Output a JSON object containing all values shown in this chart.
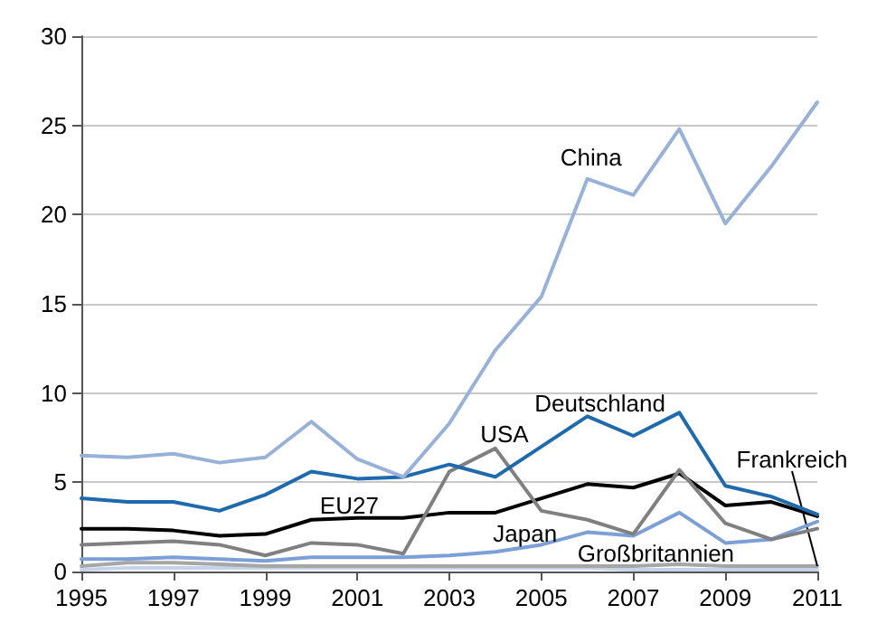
{
  "chart_data": {
    "type": "line",
    "x": [
      1995,
      1996,
      1997,
      1998,
      1999,
      2000,
      2001,
      2002,
      2003,
      2004,
      2005,
      2006,
      2007,
      2008,
      2009,
      2010,
      2011
    ],
    "series": [
      {
        "name": "China",
        "color": "#98b1d9",
        "values": [
          6.5,
          6.4,
          6.6,
          6.1,
          6.4,
          8.4,
          6.3,
          5.3,
          8.3,
          12.4,
          15.4,
          22,
          21.1,
          24.8,
          19.5,
          22.7,
          26.3
        ]
      },
      {
        "name": "Deutschland",
        "color": "#1f6aad",
        "values": [
          4.1,
          3.9,
          3.9,
          3.4,
          4.3,
          5.6,
          5.2,
          5.3,
          6.0,
          5.3,
          7.0,
          8.7,
          7.6,
          8.9,
          4.8,
          4.2,
          3.2
        ]
      },
      {
        "name": "USA",
        "color": "#808080",
        "values": [
          1.5,
          1.6,
          1.7,
          1.5,
          0.9,
          1.6,
          1.5,
          1.0,
          5.6,
          6.9,
          3.4,
          2.9,
          2.1,
          5.7,
          2.7,
          1.8,
          2.4
        ]
      },
      {
        "name": "EU27",
        "color": "#000000",
        "values": [
          2.4,
          2.4,
          2.3,
          2.0,
          2.1,
          2.9,
          3.0,
          3.0,
          3.3,
          3.3,
          4.1,
          4.9,
          4.7,
          5.5,
          3.7,
          3.9,
          3.1
        ]
      },
      {
        "name": "Japan",
        "color": "#7b9fd6",
        "values": [
          0.7,
          0.7,
          0.8,
          0.7,
          0.6,
          0.8,
          0.8,
          0.8,
          0.9,
          1.1,
          1.5,
          2.2,
          2.0,
          3.3,
          1.6,
          1.8,
          2.8
        ]
      },
      {
        "name": "Frankreich",
        "color": "#a6a6a6",
        "values": [
          0.3,
          0.5,
          0.5,
          0.4,
          0.3,
          0.3,
          0.3,
          0.3,
          0.3,
          0.3,
          0.3,
          0.3,
          0.3,
          0.4,
          0.3,
          0.3,
          0.3
        ]
      },
      {
        "name": "Großbritannien",
        "color": "#c5d3ea",
        "values": [
          0.1,
          0.2,
          0.2,
          0.2,
          0.2,
          0.2,
          0.2,
          0.2,
          0.2,
          0.2,
          0.2,
          0.2,
          0.1,
          0.1,
          0.1,
          0.1,
          0.1
        ]
      }
    ],
    "xlim": [
      1995,
      2011
    ],
    "xticks": [
      1995,
      1997,
      1999,
      2001,
      2003,
      2005,
      2007,
      2009,
      2011
    ],
    "ylim": [
      0,
      30
    ],
    "yticks": [
      0,
      5,
      10,
      15,
      20,
      25,
      30
    ],
    "grid": "y",
    "legend": false,
    "marker": "none",
    "line_style": "solid"
  }
}
